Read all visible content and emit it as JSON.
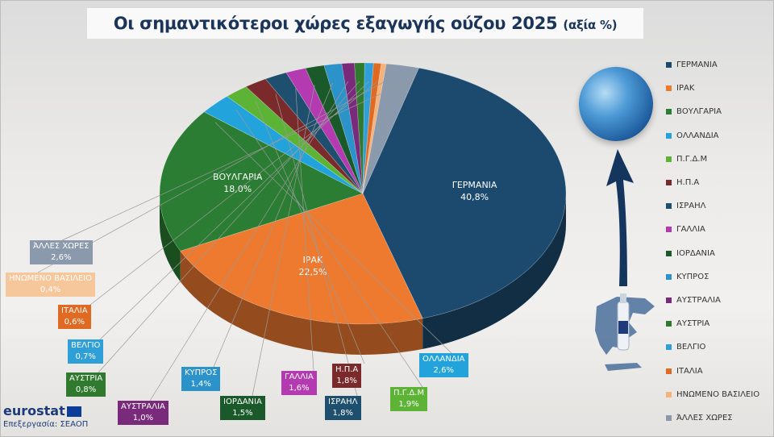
{
  "title": {
    "main": "Οι σημαντικότεροι χώρες εξαγωγής ούζου 2025",
    "unit": "(αξία %)"
  },
  "branding": {
    "source": "eurostat",
    "processing": "Επεξεργασία: ΣΕΑΟΠ"
  },
  "icons": {
    "globe": "globe-icon",
    "arrow": "up-arrow-icon",
    "map": "greece-map-icon",
    "bottle": "ouzo-bottle-icon"
  },
  "chart_data": {
    "type": "pie",
    "title": "Οι σημαντικότεροι χώρες εξαγωγής ούζου 2025 (αξία %)",
    "legend_position": "right",
    "slices": [
      {
        "label": "ΓΕΡΜΑΝΙΑ",
        "value": 40.8,
        "display": "40,8%",
        "color": "#1b4a6e"
      },
      {
        "label": "ΙΡΑΚ",
        "value": 22.5,
        "display": "22,5%",
        "color": "#ee7a30"
      },
      {
        "label": "ΒΟΥΛΓΑΡΙΑ",
        "value": 18.0,
        "display": "18,0%",
        "color": "#2a7d32"
      },
      {
        "label": "ΟΛΛΑΝΔΙΑ",
        "value": 2.6,
        "display": "2,6%",
        "color": "#22a3dc"
      },
      {
        "label": "Π.Γ.Δ.Μ",
        "value": 1.9,
        "display": "1,9%",
        "color": "#5cb335"
      },
      {
        "label": "Η.Π.Α",
        "value": 1.8,
        "display": "1,8%",
        "color": "#7a2a2a"
      },
      {
        "label": "ΙΣΡΑΗΛ",
        "value": 1.8,
        "display": "1,8%",
        "color": "#1f4f6e"
      },
      {
        "label": "ΓΑΛΛΙΑ",
        "value": 1.6,
        "display": "1,6%",
        "color": "#b43ab1"
      },
      {
        "label": "ΙΟΡΔΑΝΙΑ",
        "value": 1.5,
        "display": "1,5%",
        "color": "#1a5a2a"
      },
      {
        "label": "ΚΥΠΡΟΣ",
        "value": 1.4,
        "display": "1,4%",
        "color": "#2b93c9"
      },
      {
        "label": "ΑΥΣΤΡΑΛΙΑ",
        "value": 1.0,
        "display": "1,0%",
        "color": "#7a2a7a"
      },
      {
        "label": "ΑΥΣΤΡΙΑ",
        "value": 0.8,
        "display": "0,8%",
        "color": "#2f7a2f"
      },
      {
        "label": "ΒΕΛΓΙΟ",
        "value": 0.7,
        "display": "0,7%",
        "color": "#2f9fd8"
      },
      {
        "label": "ΙΤΑΛΙΑ",
        "value": 0.6,
        "display": "0,6%",
        "color": "#e06a22"
      },
      {
        "label": "ΗΝΩΜΕΝΟ ΒΑΣΙΛΕΙΟ",
        "value": 0.4,
        "display": "0,4%",
        "color": "#f5b27a"
      },
      {
        "label": "ΆΛΛΕΣ ΧΩΡΕΣ",
        "value": 2.6,
        "display": "2,6%",
        "color": "#8a9aac"
      }
    ]
  }
}
